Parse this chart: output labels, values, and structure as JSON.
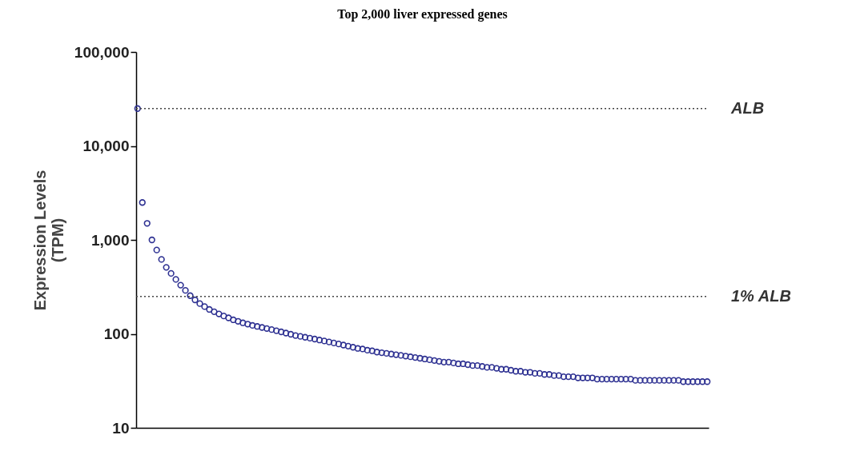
{
  "chart_data": {
    "type": "scatter",
    "title": "Top 2,000 liver expressed genes",
    "ylabel": "Expression Levels\n(TPM)",
    "categories": [
      null,
      null,
      null,
      null,
      null,
      null,
      null,
      null,
      null,
      null,
      null,
      null,
      null,
      null,
      null,
      null,
      null,
      null,
      null,
      null,
      null,
      null,
      null,
      null,
      null,
      null,
      null,
      null,
      null,
      null,
      null,
      null,
      null,
      null,
      null,
      null,
      null,
      null,
      null,
      null,
      null,
      null,
      null,
      null,
      null,
      null,
      null,
      null,
      null,
      null,
      null,
      null,
      null,
      null,
      null,
      null,
      null,
      null,
      null,
      null,
      null,
      null,
      null,
      null,
      null,
      null,
      null,
      null,
      null,
      null,
      null,
      null,
      null,
      null,
      null,
      null,
      null,
      null,
      null,
      null,
      null,
      null,
      null,
      null,
      null,
      null,
      null,
      null,
      null,
      null,
      null,
      null,
      null,
      null,
      null,
      null,
      null,
      null,
      null,
      null,
      null,
      null,
      null,
      null,
      null,
      null,
      null,
      null,
      null,
      null,
      null,
      null,
      null,
      null,
      null,
      null,
      null,
      null,
      null,
      null
    ],
    "series": [
      {
        "color": "#2e3192",
        "values": [
          25000,
          2500,
          1500,
          1000,
          780,
          620,
          510,
          440,
          380,
          330,
          290,
          255,
          230,
          210,
          195,
          182,
          172,
          163,
          155,
          148,
          141,
          136,
          131,
          127,
          123,
          120,
          117,
          114,
          111,
          108,
          105,
          102,
          99,
          96,
          94,
          92,
          90,
          88,
          86,
          84,
          82,
          80,
          78,
          76,
          74,
          72,
          70,
          69,
          67,
          66,
          64,
          63,
          62,
          61,
          60,
          59,
          58,
          57,
          56,
          55,
          54,
          53,
          52,
          51,
          50,
          50,
          49,
          48,
          48,
          47,
          46,
          46,
          45,
          44,
          44,
          43,
          42,
          42,
          41,
          40,
          40,
          39,
          39,
          38,
          38,
          37,
          37,
          36,
          36,
          35,
          35,
          35,
          34,
          34,
          34,
          34,
          33,
          33,
          33,
          33,
          33,
          33,
          33,
          33,
          32,
          32,
          32,
          32,
          32,
          32,
          32,
          32,
          32,
          32,
          31,
          31,
          31,
          31,
          31,
          31
        ]
      }
    ],
    "ylim": [
      10,
      100000
    ],
    "yticks": [
      10,
      100,
      {
        "value": 1000,
        "label": "1,000"
      },
      {
        "value": 10000,
        "label": "10,000"
      },
      {
        "value": 100000,
        "label": "100,000"
      }
    ],
    "log": "y",
    "grid": false,
    "tick_labels": "y",
    "marker": "circle",
    "ref_lines": [
      {
        "axis": "y",
        "value": 25000,
        "label": "ALB",
        "color": "#444444",
        "line_style": "dotted"
      },
      {
        "axis": "y",
        "value": 250,
        "label": "1% ALB",
        "color": "#444444",
        "line_style": "dotted"
      }
    ]
  }
}
